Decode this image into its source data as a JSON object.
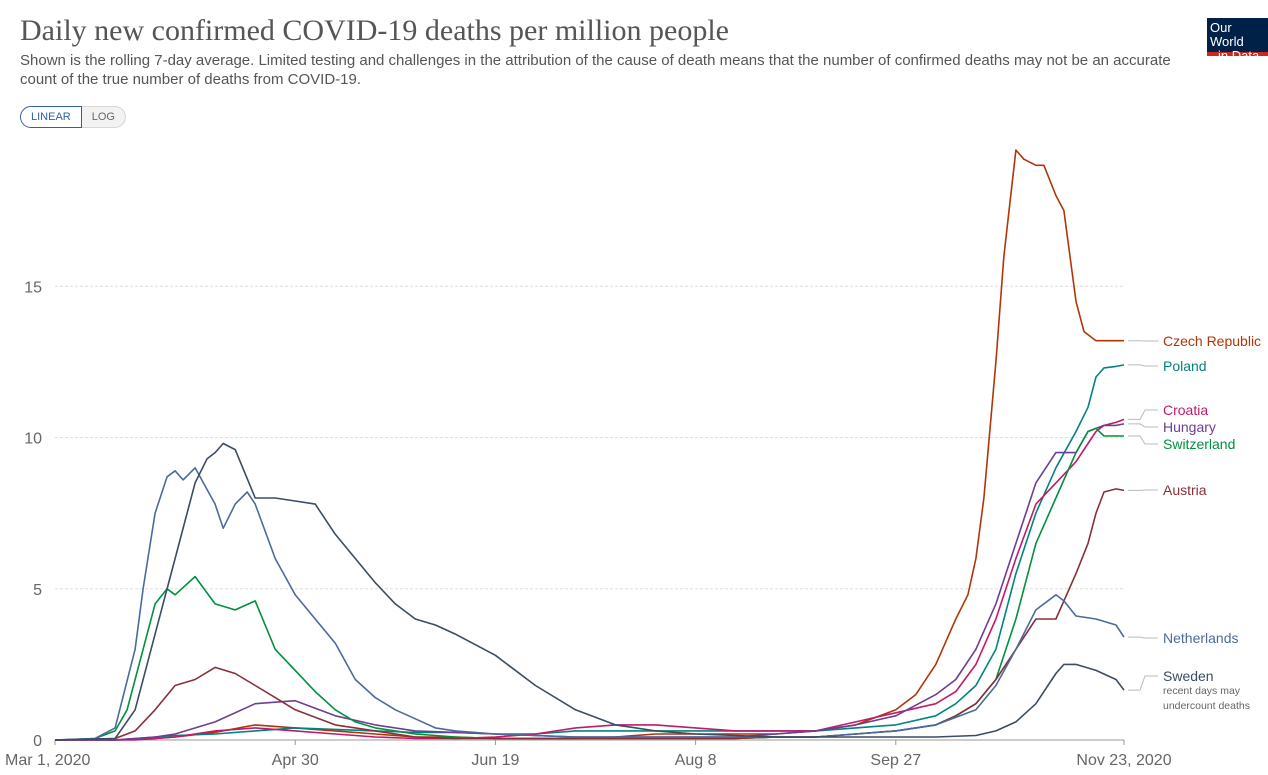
{
  "header": {
    "title": "Daily new confirmed COVID-19 deaths per million people",
    "subtitle": "Shown is the rolling 7-day average. Limited testing and challenges in the attribution of the cause of death means that the number of confirmed deaths may not be an accurate count of the true number of deaths from COVID-19."
  },
  "controls": {
    "linear_label": "LINEAR",
    "log_label": "LOG"
  },
  "logo": {
    "line1": "Our World",
    "line2": "in Data"
  },
  "chart_data": {
    "type": "line",
    "title": "Daily new confirmed COVID-19 deaths per million people",
    "ylabel": "",
    "xlabel": "",
    "ylim": [
      0,
      20
    ],
    "grid": true,
    "x_range_days": [
      0,
      267
    ],
    "x_ticks": [
      {
        "day": 0,
        "label": "Mar 1, 2020"
      },
      {
        "day": 60,
        "label": "Apr 30"
      },
      {
        "day": 110,
        "label": "Jun 19"
      },
      {
        "day": 160,
        "label": "Aug 8"
      },
      {
        "day": 210,
        "label": "Sep 27"
      },
      {
        "day": 267,
        "label": "Nov 23, 2020"
      }
    ],
    "y_ticks": [
      0,
      5,
      10,
      15
    ],
    "note": "recent days may undercount deaths",
    "series": [
      {
        "name": "Czech Republic",
        "color": "#b13507",
        "x": [
          0,
          15,
          20,
          25,
          30,
          40,
          50,
          60,
          70,
          80,
          90,
          100,
          110,
          120,
          130,
          140,
          150,
          160,
          170,
          180,
          190,
          200,
          210,
          215,
          220,
          225,
          228,
          230,
          232,
          235,
          237,
          240,
          242,
          245,
          247,
          250,
          252,
          255,
          257,
          260,
          262,
          265,
          267
        ],
        "y": [
          0,
          0,
          0.02,
          0.05,
          0.1,
          0.25,
          0.5,
          0.4,
          0.3,
          0.2,
          0.1,
          0.1,
          0.05,
          0.05,
          0.05,
          0.1,
          0.2,
          0.2,
          0.2,
          0.2,
          0.3,
          0.5,
          1,
          1.5,
          2.5,
          4,
          4.8,
          6,
          8,
          12.5,
          16,
          19.5,
          19.2,
          19,
          19,
          18,
          17.5,
          14.5,
          13.5,
          13.2,
          13.2,
          13.2,
          13.2
        ]
      },
      {
        "name": "Poland",
        "color": "#00847e",
        "x": [
          0,
          15,
          20,
          25,
          30,
          40,
          50,
          60,
          70,
          80,
          90,
          100,
          110,
          120,
          130,
          140,
          150,
          160,
          170,
          180,
          190,
          200,
          210,
          220,
          225,
          230,
          235,
          240,
          245,
          250,
          255,
          258,
          260,
          262,
          265,
          267
        ],
        "y": [
          0,
          0,
          0.05,
          0.1,
          0.15,
          0.2,
          0.3,
          0.4,
          0.35,
          0.3,
          0.25,
          0.25,
          0.2,
          0.2,
          0.3,
          0.3,
          0.3,
          0.3,
          0.3,
          0.3,
          0.3,
          0.4,
          0.5,
          0.8,
          1.2,
          1.8,
          3,
          5.5,
          7.5,
          9,
          10.2,
          11,
          12,
          12.3,
          12.35,
          12.4
        ]
      },
      {
        "name": "Croatia",
        "color": "#c21a6b",
        "x": [
          0,
          15,
          20,
          25,
          30,
          40,
          50,
          60,
          70,
          80,
          90,
          100,
          110,
          120,
          130,
          140,
          150,
          160,
          170,
          180,
          190,
          200,
          210,
          220,
          225,
          230,
          235,
          240,
          245,
          250,
          255,
          258,
          260,
          262,
          265,
          267
        ],
        "y": [
          0,
          0,
          0,
          0.05,
          0.1,
          0.3,
          0.4,
          0.3,
          0.2,
          0.1,
          0.05,
          0.05,
          0.1,
          0.2,
          0.4,
          0.5,
          0.5,
          0.4,
          0.3,
          0.3,
          0.3,
          0.6,
          0.9,
          1.2,
          1.6,
          2.5,
          4,
          6,
          7.8,
          8.5,
          9.2,
          9.8,
          10.2,
          10.4,
          10.5,
          10.6
        ]
      },
      {
        "name": "Hungary",
        "color": "#6d3e91",
        "x": [
          0,
          15,
          20,
          25,
          30,
          40,
          50,
          60,
          70,
          80,
          90,
          100,
          110,
          120,
          130,
          140,
          150,
          160,
          170,
          180,
          190,
          200,
          210,
          220,
          225,
          230,
          235,
          240,
          245,
          250,
          255,
          258,
          260,
          262,
          265,
          267
        ],
        "y": [
          0,
          0,
          0.05,
          0.1,
          0.2,
          0.6,
          1.2,
          1.3,
          0.8,
          0.5,
          0.3,
          0.25,
          0.2,
          0.15,
          0.1,
          0.1,
          0.1,
          0.1,
          0.1,
          0.2,
          0.3,
          0.5,
          0.8,
          1.5,
          2,
          3,
          4.5,
          6.5,
          8.5,
          9.5,
          9.5,
          10.2,
          10.3,
          10.4,
          10.4,
          10.45
        ]
      },
      {
        "name": "Switzerland",
        "color": "#00913e",
        "x": [
          0,
          10,
          15,
          18,
          20,
          22,
          25,
          28,
          30,
          35,
          40,
          45,
          50,
          55,
          60,
          65,
          70,
          75,
          80,
          85,
          90,
          95,
          100,
          110,
          120,
          130,
          140,
          150,
          160,
          170,
          180,
          190,
          200,
          210,
          220,
          225,
          230,
          235,
          240,
          245,
          250,
          255,
          258,
          260,
          262,
          265,
          267
        ],
        "y": [
          0,
          0.05,
          0.3,
          1,
          2,
          3,
          4.5,
          5,
          4.8,
          5.4,
          4.5,
          4.3,
          4.6,
          3,
          2.3,
          1.6,
          1,
          0.6,
          0.4,
          0.3,
          0.2,
          0.15,
          0.1,
          0.05,
          0.05,
          0.05,
          0.05,
          0.05,
          0.05,
          0.05,
          0.1,
          0.1,
          0.2,
          0.3,
          0.5,
          0.8,
          1.2,
          2,
          4,
          6.5,
          8,
          9.5,
          10.2,
          10.3,
          10.05,
          10.05,
          10.05
        ]
      },
      {
        "name": "Austria",
        "color": "#883039",
        "x": [
          0,
          15,
          20,
          25,
          30,
          35,
          40,
          45,
          50,
          55,
          60,
          70,
          80,
          90,
          100,
          110,
          120,
          130,
          140,
          150,
          160,
          170,
          180,
          190,
          200,
          210,
          220,
          225,
          230,
          235,
          240,
          245,
          250,
          255,
          258,
          260,
          262,
          265,
          267
        ],
        "y": [
          0,
          0.05,
          0.3,
          1,
          1.8,
          2,
          2.4,
          2.2,
          1.8,
          1.4,
          1,
          0.5,
          0.3,
          0.1,
          0.05,
          0.05,
          0.05,
          0.05,
          0.05,
          0.05,
          0.05,
          0.05,
          0.1,
          0.1,
          0.2,
          0.3,
          0.5,
          0.8,
          1.2,
          2,
          3,
          4,
          4,
          5.5,
          6.5,
          7.5,
          8.2,
          8.3,
          8.25
        ]
      },
      {
        "name": "Netherlands",
        "color": "#4c6a9c",
        "x": [
          0,
          10,
          15,
          20,
          22,
          25,
          28,
          30,
          32,
          35,
          40,
          42,
          45,
          48,
          50,
          55,
          60,
          65,
          70,
          75,
          80,
          85,
          90,
          95,
          100,
          110,
          120,
          130,
          140,
          150,
          160,
          170,
          180,
          190,
          200,
          210,
          220,
          230,
          235,
          240,
          245,
          250,
          252,
          255,
          260,
          265,
          267
        ],
        "y": [
          0,
          0.05,
          0.4,
          3,
          5,
          7.5,
          8.7,
          8.9,
          8.6,
          9,
          7.8,
          7,
          7.8,
          8.2,
          7.8,
          6,
          4.8,
          4,
          3.2,
          2,
          1.4,
          1,
          0.7,
          0.4,
          0.3,
          0.2,
          0.15,
          0.1,
          0.1,
          0.1,
          0.1,
          0.1,
          0.1,
          0.1,
          0.2,
          0.3,
          0.5,
          1,
          1.8,
          3,
          4.3,
          4.8,
          4.6,
          4.1,
          4,
          3.8,
          3.4
        ]
      },
      {
        "name": "Sweden",
        "color": "#3b4d60",
        "x": [
          0,
          15,
          20,
          25,
          30,
          35,
          38,
          40,
          42,
          45,
          50,
          55,
          60,
          65,
          70,
          75,
          80,
          85,
          90,
          95,
          100,
          110,
          120,
          130,
          140,
          150,
          160,
          170,
          180,
          190,
          200,
          210,
          220,
          230,
          235,
          240,
          245,
          250,
          252,
          255,
          260,
          265,
          267
        ],
        "y": [
          0,
          0.05,
          1,
          3.5,
          6,
          8.5,
          9.3,
          9.5,
          9.8,
          9.6,
          8,
          8,
          7.9,
          7.8,
          6.8,
          6,
          5.2,
          4.5,
          4,
          3.8,
          3.5,
          2.8,
          1.8,
          1,
          0.5,
          0.3,
          0.2,
          0.15,
          0.1,
          0.1,
          0.1,
          0.1,
          0.1,
          0.15,
          0.3,
          0.6,
          1.2,
          2.2,
          2.5,
          2.5,
          2.3,
          2,
          1.65
        ]
      }
    ]
  }
}
